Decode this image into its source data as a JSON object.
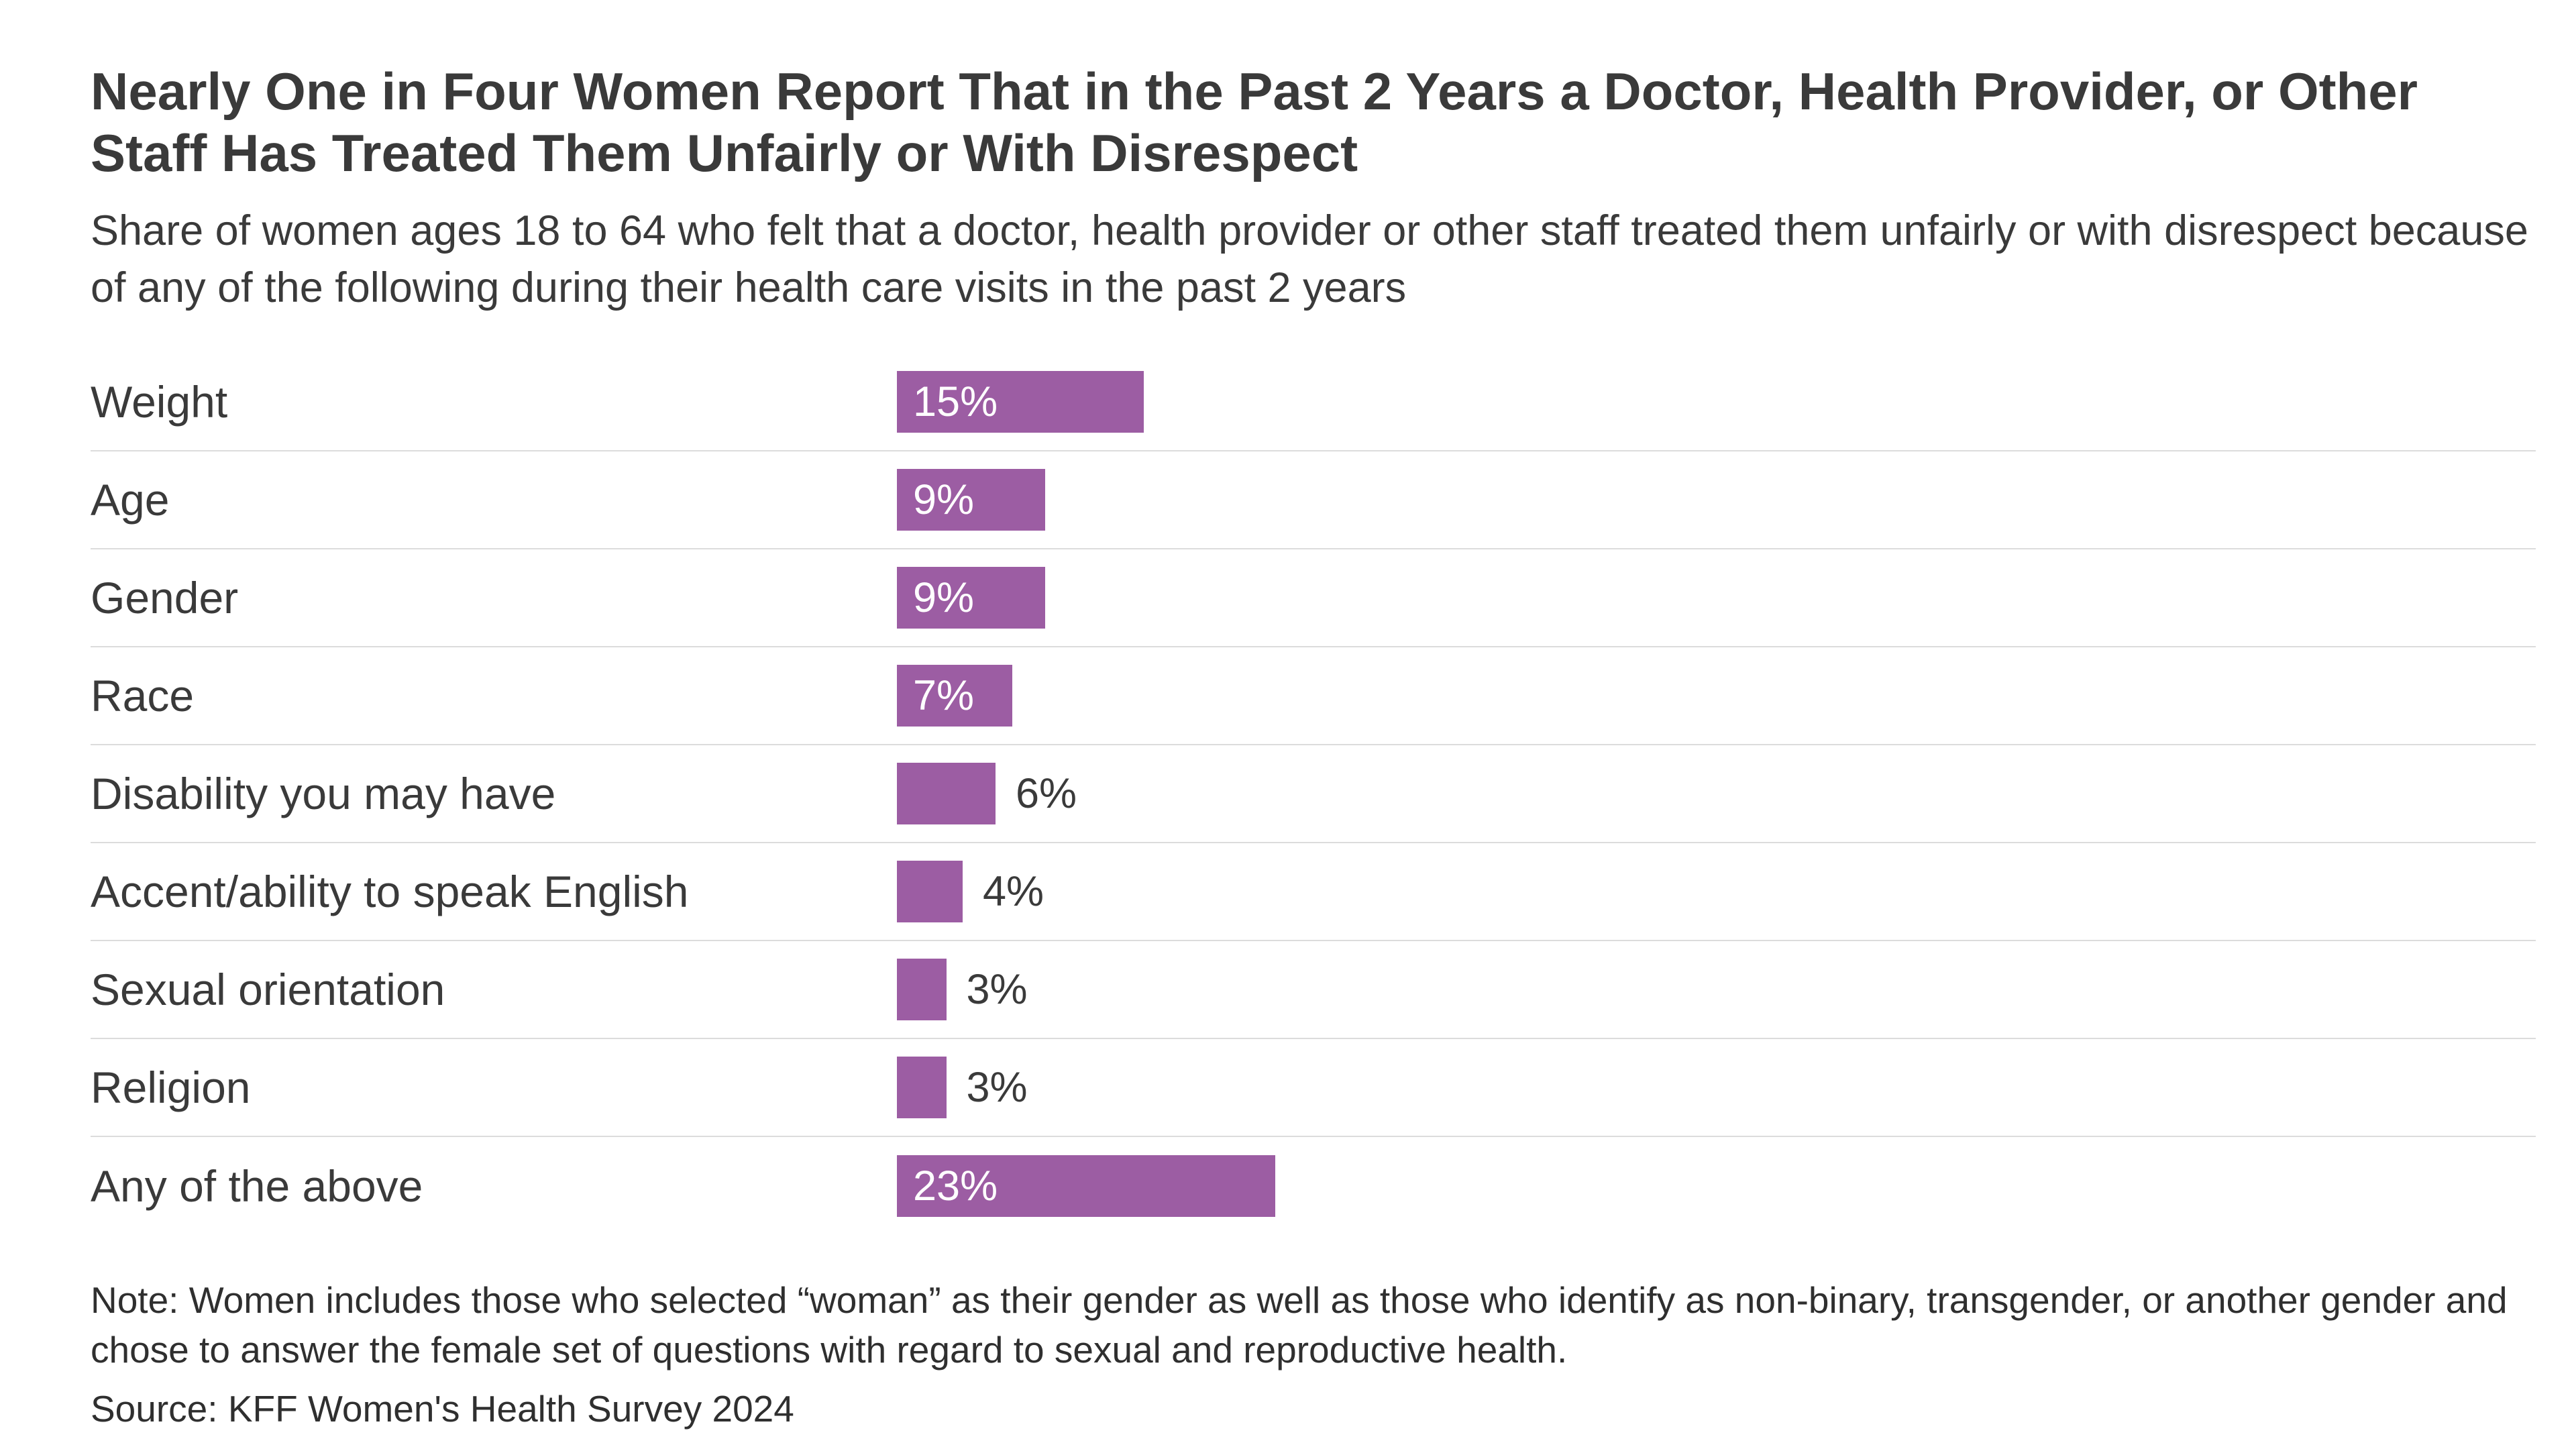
{
  "header": {
    "title": "Nearly One in Four Women Report That in the Past 2 Years a Doctor, Health Provider, or Other Staff Has Treated Them Unfairly or With Disrespect",
    "subtitle": "Share of women ages 18 to 64 who felt that a doctor, health provider or other staff treated them unfairly or with disrespect because of any of the following during their health care visits in the past 2 years"
  },
  "chart_data": {
    "type": "bar",
    "orientation": "horizontal",
    "title": "Nearly One in Four Women Report That in the Past 2 Years a Doctor, Health Provider, or Other Staff Has Treated Them Unfairly or With Disrespect",
    "categories": [
      "Weight",
      "Age",
      "Gender",
      "Race",
      "Disability you may have",
      "Accent/ability to speak English",
      "Sexual orientation",
      "Religion",
      "Any of the above"
    ],
    "values": [
      15,
      9,
      9,
      7,
      6,
      4,
      3,
      3,
      23
    ],
    "value_labels": [
      "15%",
      "9%",
      "9%",
      "7%",
      "6%",
      "4%",
      "3%",
      "3%",
      "23%"
    ],
    "value_suffix": "%",
    "xlim": [
      0,
      25
    ],
    "bar_color": "#9c5da3",
    "grid": "row-separators-only",
    "legend": "none"
  },
  "footer": {
    "note": "Note: Women includes those who selected “woman” as their gender as well as those who identify as non-binary, transgender, or another gender and chose to answer the female set of questions with regard to sexual and reproductive health.",
    "source": "Source: KFF Women's Health Survey 2024"
  }
}
